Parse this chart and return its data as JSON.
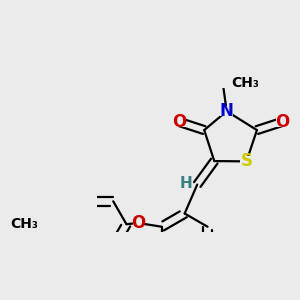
{
  "bg_color": "#ebebeb",
  "atom_colors": {
    "C": "#000000",
    "N": "#0000cc",
    "O": "#cc0000",
    "S": "#cccc00",
    "H": "#3a8080"
  },
  "bond_color": "#000000",
  "bond_width": 1.6,
  "dbo": 0.018,
  "fig_width": 3.0,
  "fig_height": 3.0,
  "dpi": 100
}
